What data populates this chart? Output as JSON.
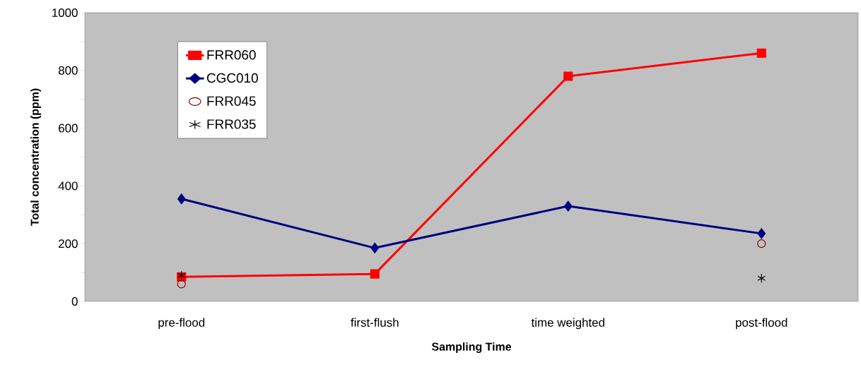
{
  "chart_data": {
    "type": "line",
    "xlabel": "Sampling Time",
    "ylabel": "Total concentration (ppm)",
    "categories": [
      "pre-flood",
      "first-flush",
      "time weighted",
      "post-flood"
    ],
    "series": [
      {
        "name": "FRR060",
        "color": "#ff0000",
        "marker": "square",
        "values": [
          85,
          95,
          780,
          860
        ]
      },
      {
        "name": "CGC010",
        "color": "#000080",
        "marker": "diamond",
        "values": [
          355,
          185,
          330,
          235
        ]
      },
      {
        "name": "FRR045",
        "color": "#800000",
        "type": "scatter",
        "marker": "circle",
        "values": [
          60,
          null,
          null,
          200
        ]
      },
      {
        "name": "FRR035",
        "color": "#000000",
        "type": "scatter",
        "marker": "cross",
        "values": [
          90,
          null,
          null,
          80
        ]
      }
    ],
    "ylim": [
      0,
      1000
    ],
    "yticks": [
      0,
      {
        "value": 100,
        "label": null
      },
      200,
      {
        "value": 300,
        "label": null
      },
      400,
      {
        "value": 500,
        "label": null
      },
      600,
      {
        "value": 700,
        "label": null
      },
      800,
      {
        "value": 900,
        "label": null
      },
      1000
    ],
    "legend": "top left"
  }
}
